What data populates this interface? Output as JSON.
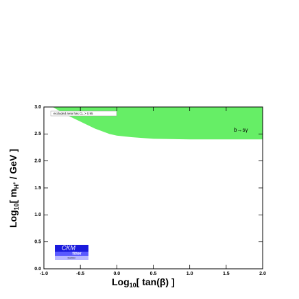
{
  "chart_data": {
    "type": "area",
    "xlabel": [
      "Log",
      "10",
      "[ tan(β) ]"
    ],
    "ylabel": [
      "Log",
      "10",
      "[ m",
      "H",
      "+",
      " / GeV ]"
    ],
    "legend_text": "excluded area has CL > 0.95",
    "annotation": "b→sγ",
    "logo": [
      "CKM",
      "fitter",
      "2HDM"
    ],
    "xlim": [
      -1,
      2
    ],
    "ylim": [
      0,
      3
    ],
    "xticks": [
      {
        "value": -1,
        "label": "-1.0"
      },
      -0.5,
      {
        "value": 0,
        "label": "0.0"
      },
      0.5,
      {
        "value": 1,
        "label": "1.0"
      },
      1.5,
      {
        "value": 2,
        "label": "2.0"
      }
    ],
    "yticks": [
      {
        "value": 0,
        "label": "0.0"
      },
      0.5,
      {
        "value": 1,
        "label": "1.0"
      },
      1.5,
      {
        "value": 2,
        "label": "2.0"
      },
      2.5,
      {
        "value": 3,
        "label": "3.0"
      }
    ],
    "series": [
      {
        "color": "#66ee66",
        "x": [
          -0.88,
          -0.7,
          -0.5,
          -0.3,
          -0.1,
          0,
          0.2,
          0.5,
          1,
          1.5,
          2
        ],
        "y_low": [
          3.0,
          2.86,
          2.73,
          2.6,
          2.5,
          2.47,
          2.44,
          2.41,
          2.4,
          2.4,
          2.4
        ],
        "y_high": [
          3.0,
          3.0,
          3.0,
          3.0,
          3.0,
          3.0,
          3.0,
          3.0,
          3.0,
          3.0,
          3.0
        ]
      }
    ]
  }
}
